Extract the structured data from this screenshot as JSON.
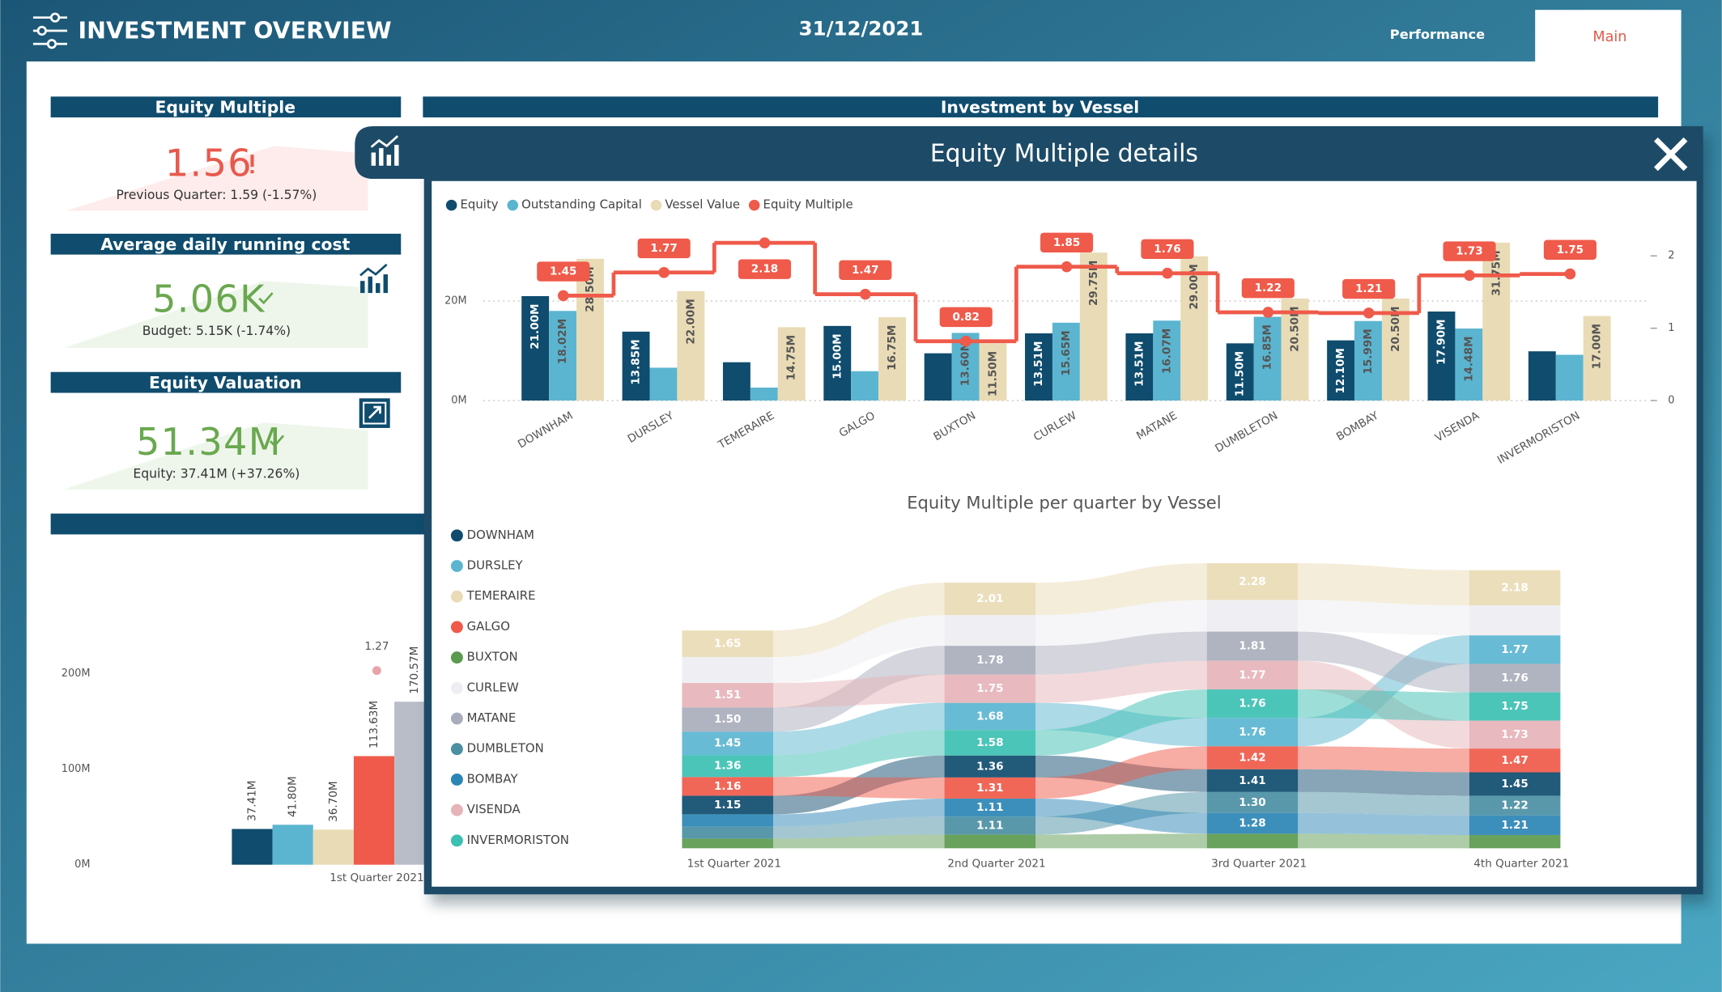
{
  "header": {
    "title": "INVESTMENT OVERVIEW",
    "date": "31/12/2021",
    "tabs": [
      "Performance",
      "Main"
    ]
  },
  "cards": [
    {
      "title": "Equity Multiple",
      "value": "1.56",
      "note": "Previous Quarter: 1.59 (-1.57%)"
    },
    {
      "title": "Average daily running cost",
      "value": "5.06K",
      "note": "Budget: 5.15K (-1.74%)"
    },
    {
      "title": "Equity Valuation",
      "value": "51.34M",
      "note": "Equity: 37.41M (+37.26%)"
    }
  ],
  "sections": [
    "Investment by Vessel"
  ],
  "modal": {
    "title": "Equity Multiple details"
  },
  "chart_data": [
    {
      "type": "bar",
      "categories": [
        "1st Quarter 2021"
      ],
      "series": [
        {
          "color": "#0f4c6e",
          "values": [
            37.41
          ],
          "value_labels": [
            "37.41M"
          ]
        },
        {
          "color": "#5bb5d0",
          "values": [
            41.8
          ],
          "value_labels": [
            "41.80M"
          ]
        },
        {
          "color": "#e9dbb5",
          "values": [
            36.7
          ],
          "value_labels": [
            "36.70M"
          ]
        },
        {
          "color": "#ef5a4a",
          "values": [
            113.63
          ],
          "value_labels": [
            "113.63M"
          ]
        },
        {
          "color": "#b9bdc8",
          "values": [
            170.57
          ],
          "value_labels": [
            "170.57M"
          ]
        },
        {
          "type": "line",
          "axis": "y2",
          "color": "#e8a3a8",
          "values": [
            1.27
          ]
        }
      ],
      "ylim": [
        0,
        240
      ],
      "yticks": [
        {
          "value": 0,
          "label": "0M"
        },
        {
          "value": 100,
          "label": "100M"
        },
        {
          "value": 200,
          "label": "200M"
        }
      ],
      "y2lim": [
        0,
        1.5
      ],
      "grid": false
    },
    {
      "type": "bar",
      "categories": [
        "DOWNHAM",
        "DURSLEY",
        "TEMERAIRE",
        "GALGO",
        "BUXTON",
        "CURLEW",
        "MATANE",
        "DUMBLETON",
        "BOMBAY",
        "VISENDA",
        "INVERMORISTON"
      ],
      "series": [
        {
          "name": "Equity",
          "color": "#0f4c6e",
          "values": [
            21.0,
            13.85,
            7.7,
            15.0,
            9.5,
            13.51,
            13.51,
            11.5,
            12.1,
            17.9,
            9.9
          ],
          "value_labels": [
            "21.00M",
            "13.85M",
            null,
            "15.00M",
            null,
            "13.51M",
            "13.51M",
            "11.50M",
            "12.10M",
            "17.90M",
            null
          ]
        },
        {
          "name": "Outstanding Capital",
          "color": "#5bb5d0",
          "values": [
            18.02,
            6.6,
            2.6,
            5.9,
            13.6,
            15.65,
            16.07,
            16.85,
            15.99,
            14.48,
            9.2
          ],
          "value_labels": [
            "18.02M",
            null,
            null,
            null,
            "13.60M",
            "15.65M",
            "16.07M",
            "16.85M",
            "15.99M",
            "14.48M",
            null
          ]
        },
        {
          "name": "Vessel Value",
          "color": "#e9dbb5",
          "values": [
            28.5,
            22.0,
            14.75,
            16.75,
            11.5,
            29.75,
            29.0,
            20.5,
            20.5,
            31.75,
            17.0
          ],
          "value_labels": [
            "28.50M",
            "22.00M",
            "14.75M",
            "16.75M",
            "11.50M",
            "29.75M",
            "29.00M",
            "20.50M",
            "20.50M",
            "31.75M",
            "17.00M"
          ]
        },
        {
          "name": "Equity Multiple",
          "type": "line",
          "axis": "y2",
          "color": "#ef5a4a",
          "values": [
            1.45,
            1.77,
            2.18,
            1.47,
            0.82,
            1.85,
            1.76,
            1.22,
            1.21,
            1.73,
            1.75
          ]
        }
      ],
      "ylim": [
        0,
        32
      ],
      "yticks": [
        {
          "value": 0,
          "label": "0M"
        },
        {
          "value": 20,
          "label": "20M"
        }
      ],
      "y2lim": [
        0,
        2.2
      ],
      "y2ticks": [
        0,
        1,
        2
      ],
      "grid": true,
      "legend": "top-left"
    },
    {
      "type": "ribbon",
      "title": "Equity Multiple per quarter by Vessel",
      "categories": [
        "1st Quarter 2021",
        "2nd Quarter 2021",
        "3rd Quarter 2021",
        "4th Quarter 2021"
      ],
      "series": [
        {
          "name": "DOWNHAM",
          "color": "#0f4c6e",
          "values": [
            1.15,
            1.36,
            1.41,
            1.45
          ],
          "value_labels": [
            "1.15",
            "1.36",
            "1.41",
            "1.45"
          ]
        },
        {
          "name": "DURSLEY",
          "color": "#5bb5d0",
          "values": [
            1.45,
            1.68,
            1.76,
            1.77
          ],
          "value_labels": [
            "1.45",
            "1.68",
            "1.76",
            "1.77"
          ]
        },
        {
          "name": "TEMERAIRE",
          "color": "#e9dbb5",
          "values": [
            1.65,
            2.01,
            2.28,
            2.18
          ],
          "value_labels": [
            "1.65",
            "2.01",
            "2.28",
            "2.18"
          ]
        },
        {
          "name": "GALGO",
          "color": "#ef5a4a",
          "values": [
            1.16,
            1.31,
            1.42,
            1.47
          ],
          "value_labels": [
            "1.16",
            "1.31",
            "1.42",
            "1.47"
          ]
        },
        {
          "name": "BUXTON",
          "color": "#5b9a4f",
          "values": [
            0.6,
            0.85,
            0.9,
            0.82
          ],
          "value_labels": [
            null,
            null,
            null,
            null
          ]
        },
        {
          "name": "CURLEW",
          "color": "#eeeef2",
          "values": [
            1.6,
            1.9,
            1.95,
            1.85
          ],
          "value_labels": [
            null,
            null,
            null,
            null
          ]
        },
        {
          "name": "MATANE",
          "color": "#a9acbb",
          "values": [
            1.5,
            1.78,
            1.81,
            1.76
          ],
          "value_labels": [
            "1.50",
            "1.78",
            "1.81",
            "1.76"
          ]
        },
        {
          "name": "DUMBLETON",
          "color": "#4a8fa3",
          "values": [
            0.75,
            1.11,
            1.3,
            1.22
          ],
          "value_labels": [
            null,
            "1.11",
            "1.30",
            "1.22"
          ]
        },
        {
          "name": "BOMBAY",
          "color": "#2b86b5",
          "values": [
            0.75,
            1.11,
            1.28,
            1.21
          ],
          "value_labels": [
            null,
            "1.11",
            "1.28",
            "1.21"
          ]
        },
        {
          "name": "VISENDA",
          "color": "#e6b3b8",
          "values": [
            1.51,
            1.75,
            1.77,
            1.73
          ],
          "value_labels": [
            "1.51",
            "1.75",
            "1.77",
            "1.73"
          ]
        },
        {
          "name": "INVERMORISTON",
          "color": "#3cc0b2",
          "values": [
            1.36,
            1.58,
            1.76,
            1.75
          ],
          "value_labels": [
            "1.36",
            "1.58",
            "1.76",
            "1.75"
          ]
        }
      ],
      "ylim": [
        0,
        18
      ]
    }
  ]
}
